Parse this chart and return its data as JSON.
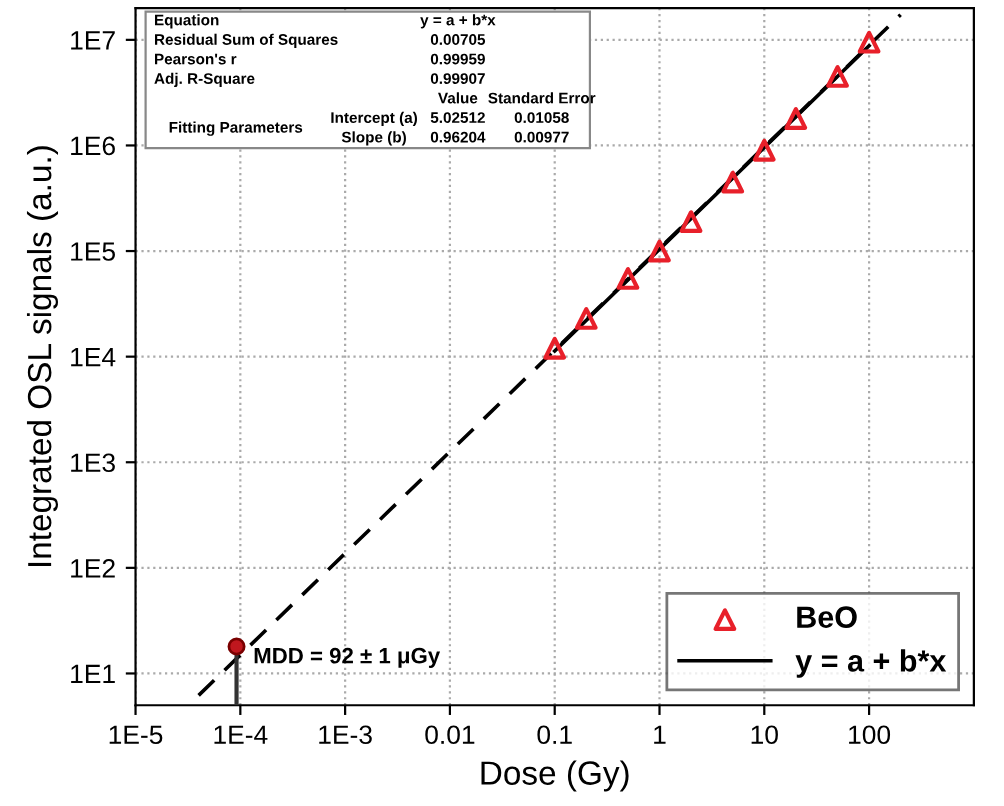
{
  "chart_data": {
    "type": "scatter",
    "xlabel": "Dose (Gy)",
    "ylabel": "Integrated OSL signals (a.u.)",
    "log": "xy",
    "xlim": [
      1e-05,
      1000
    ],
    "ylim": [
      5,
      20000000
    ],
    "xticks": [
      {
        "value": 1e-05,
        "label": "1E-5"
      },
      {
        "value": 0.0001,
        "label": "1E-4"
      },
      {
        "value": 0.001,
        "label": "1E-3"
      },
      0.01,
      0.1,
      1,
      10,
      100
    ],
    "yticks": [
      {
        "value": 10,
        "label": "1E1"
      },
      {
        "value": 100,
        "label": "1E2"
      },
      {
        "value": 1000,
        "label": "1E3"
      },
      {
        "value": 10000,
        "label": "1E4"
      },
      {
        "value": 100000,
        "label": "1E5"
      },
      {
        "value": 1000000,
        "label": "1E6"
      },
      {
        "value": 10000000,
        "label": "1E7"
      }
    ],
    "grid": true,
    "legend": "bottom right",
    "series": [
      {
        "name": "BeO",
        "marker": "triangle",
        "color": "#e8202a",
        "x": [
          0.1,
          0.2,
          0.5,
          1,
          2,
          5,
          10,
          20,
          50,
          100
        ],
        "values": [
          12000,
          23000,
          55000,
          100000,
          190000,
          450000,
          900000,
          1800000,
          4500000,
          9500000
        ]
      },
      {
        "name": "y = a + b*x",
        "type": "line",
        "line_style": "solid",
        "color": "#000000",
        "x": [
          0.1,
          100
        ],
        "values": [
          11300,
          8800000
        ]
      },
      {
        "type": "line",
        "line_style": "dashed",
        "color": "#000000",
        "x": [
          4e-05,
          200
        ],
        "values": [
          6.2,
          17300000
        ]
      },
      {
        "type": "lollipop",
        "marker": "circle",
        "color": "#c0171e",
        "x": [
          9.2e-05
        ],
        "values": [
          18
        ]
      }
    ],
    "annotations": [
      {
        "text": "MDD = 92 ± 1 μGy",
        "x": 9.2e-05,
        "y": 18
      },
      "Equation",
      "y = a + b*x",
      "Residual Sum of Squares",
      "0.00705",
      "Pearson's r",
      "0.99959",
      "Adj. R-Square",
      "0.99907",
      "Value",
      "Standard Error",
      "Fitting Parameters",
      "Intercept (a)",
      "5.02512",
      "0.01058",
      "Slope (b)",
      "0.96204",
      "0.00977"
    ]
  }
}
